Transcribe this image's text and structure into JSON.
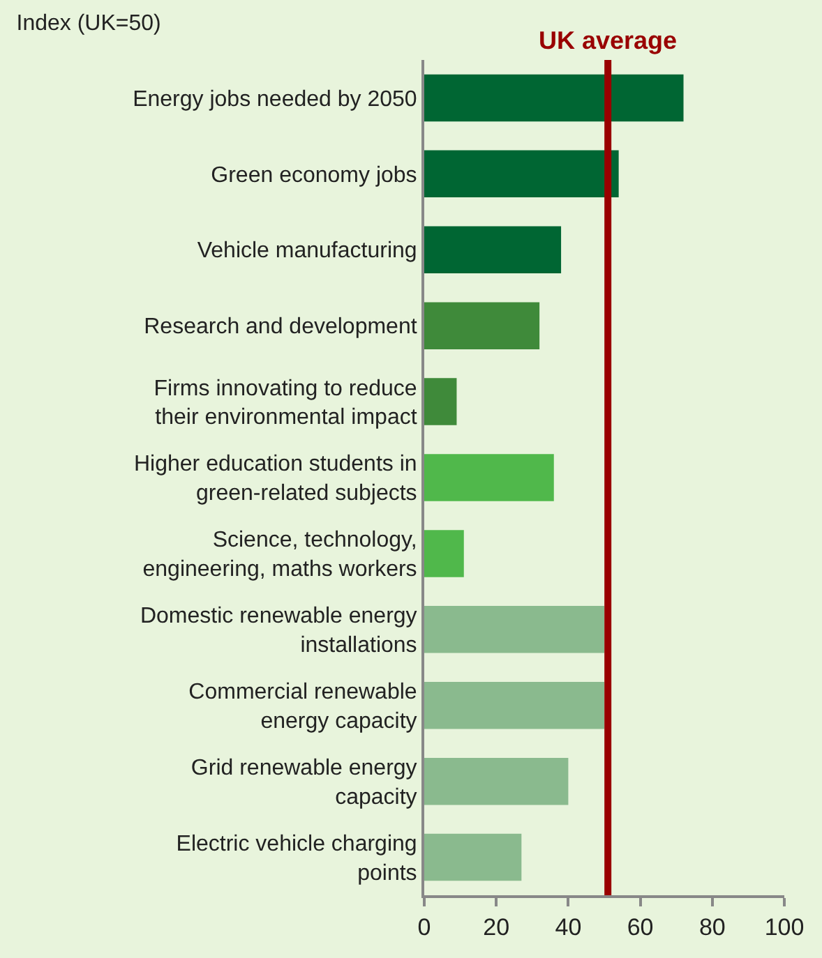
{
  "chart_data": {
    "type": "bar",
    "orientation": "horizontal",
    "title": "Index (UK=50)",
    "categories": [
      "Energy jobs needed by 2050",
      "Green economy jobs",
      "Vehicle manufacturing",
      "Research and development",
      "Firms innovating to reduce\ntheir environmental impact",
      "Higher education students in\ngreen-related subjects",
      "Science, technology,\nengineering, maths workers",
      "Domestic renewable energy\ninstallations",
      "Commercial renewable\nenergy capacity",
      "Grid renewable energy\ncapacity",
      "Electric vehicle charging\npoints"
    ],
    "values": [
      72,
      54,
      38,
      32,
      9,
      36,
      11,
      50,
      50,
      40,
      27
    ],
    "colors": [
      "#006633",
      "#006633",
      "#006633",
      "#3f8a3a",
      "#3f8a3a",
      "#50b84b",
      "#50b84b",
      "#8aba8e",
      "#8aba8e",
      "#8aba8e",
      "#8aba8e"
    ],
    "xlim": [
      0,
      100
    ],
    "xticks": [
      0,
      20,
      40,
      60,
      80,
      100
    ],
    "ref_lines": [
      {
        "axis": "x",
        "value": 51,
        "label": "UK average",
        "color": "#990000"
      }
    ],
    "grid": false
  }
}
